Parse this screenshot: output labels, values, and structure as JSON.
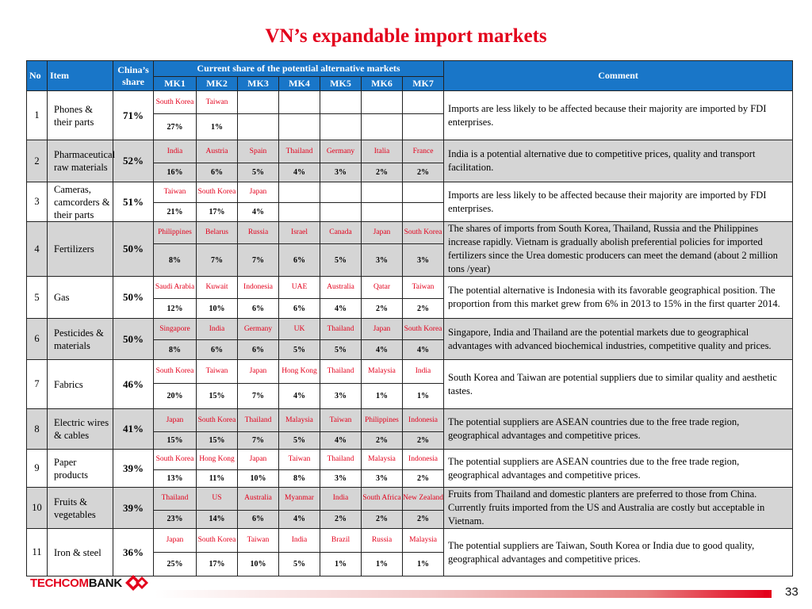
{
  "title": "VN’s expandable import markets",
  "headers": {
    "no": "No",
    "item": "Item",
    "china_share": "China’s share",
    "group": "Current share of the potential alternative markets",
    "comment": "Comment",
    "mks": [
      "MK1",
      "MK2",
      "MK3",
      "MK4",
      "MK5",
      "MK6",
      "MK7"
    ]
  },
  "rows": [
    {
      "no": "1",
      "item": "Phones & their parts",
      "share": "71%",
      "markets": [
        "South Korea",
        "Taiwan",
        "",
        "",
        "",
        "",
        ""
      ],
      "pcts": [
        "27%",
        "1%",
        "",
        "",
        "",
        "",
        ""
      ],
      "comment": "Imports are less likely to be affected because their majority are imported by FDI enterprises."
    },
    {
      "no": "2",
      "item": "Pharmaceutical raw materials",
      "share": "52%",
      "markets": [
        "India",
        "Austria",
        "Spain",
        "Thailand",
        "Germany",
        "Italia",
        "France"
      ],
      "pcts": [
        "16%",
        "6%",
        "5%",
        "4%",
        "3%",
        "2%",
        "2%"
      ],
      "comment": "India is a potential alternative due to competitive prices, quality and transport facilitation."
    },
    {
      "no": "3",
      "item": "Cameras, camcorders & their parts",
      "share": "51%",
      "markets": [
        "Taiwan",
        "South Korea",
        "Japan",
        "",
        "",
        "",
        ""
      ],
      "pcts": [
        "21%",
        "17%",
        "4%",
        "",
        "",
        "",
        ""
      ],
      "comment": "Imports are less likely to be affected because their majority are imported by FDI enterprises."
    },
    {
      "no": "4",
      "item": "Fertilizers",
      "share": "50%",
      "markets": [
        "Philippines",
        "Belarus",
        "Russia",
        "Israel",
        "Canada",
        "Japan",
        "South Korea"
      ],
      "pcts": [
        "8%",
        "7%",
        "7%",
        "6%",
        "5%",
        "3%",
        "3%"
      ],
      "comment": "The shares of imports from South Korea, Thailand, Russia and the Philippines increase rapidly. Vietnam is gradually abolish preferential policies for imported fertilizers since the Urea domestic producers can meet the demand (about 2 million tons /year)"
    },
    {
      "no": "5",
      "item": "Gas",
      "share": "50%",
      "markets": [
        "Saudi Arabia",
        "Kuwait",
        "Indonesia",
        "UAE",
        "Australia",
        "Qatar",
        "Taiwan"
      ],
      "pcts": [
        "12%",
        "10%",
        "6%",
        "6%",
        "4%",
        "2%",
        "2%"
      ],
      "comment": "The potential alternative is Indonesia with its favorable geographical position. The proportion from this market grew from 6% in 2013 to 15% in the first quarter 2014."
    },
    {
      "no": "6",
      "item": "Pesticides & materials",
      "share": "50%",
      "markets": [
        "Singapore",
        "India",
        "Germany",
        "UK",
        "Thailand",
        "Japan",
        "South Korea"
      ],
      "pcts": [
        "8%",
        "6%",
        "6%",
        "5%",
        "5%",
        "4%",
        "4%"
      ],
      "comment": "Singapore, India and Thailand are the potential markets due to geographical advantages with advanced biochemical industries, competitive quality and prices."
    },
    {
      "no": "7",
      "item": "Fabrics",
      "share": "46%",
      "markets": [
        "South Korea",
        "Taiwan",
        "Japan",
        "Hong Kong",
        "Thailand",
        "Malaysia",
        "India"
      ],
      "pcts": [
        "20%",
        "15%",
        "7%",
        "4%",
        "3%",
        "1%",
        "1%"
      ],
      "comment": "South Korea and Taiwan are potential suppliers due to similar quality and aesthetic tastes."
    },
    {
      "no": "8",
      "item": "Electric wires & cables",
      "share": "41%",
      "markets": [
        "Japan",
        "South Korea",
        "Thailand",
        "Malaysia",
        "Taiwan",
        "Philippines",
        "Indonesia"
      ],
      "pcts": [
        "15%",
        "15%",
        "7%",
        "5%",
        "4%",
        "2%",
        "2%"
      ],
      "comment": "The potential suppliers are ASEAN countries due to the free trade region, geographical advantages and competitive prices."
    },
    {
      "no": "9",
      "item": "Paper products",
      "share": "39%",
      "markets": [
        "South Korea",
        "Hong Kong",
        "Japan",
        "Taiwan",
        "Thailand",
        "Malaysia",
        "Indonesia"
      ],
      "pcts": [
        "13%",
        "11%",
        "10%",
        "8%",
        "3%",
        "3%",
        "2%"
      ],
      "comment": "The potential suppliers are ASEAN countries due to the free trade region, geographical advantages and competitive prices."
    },
    {
      "no": "10",
      "item": "Fruits & vegetables",
      "share": "39%",
      "markets": [
        "Thailand",
        "US",
        "Australia",
        "Myanmar",
        "India",
        "South Africa",
        "New Zealand"
      ],
      "pcts": [
        "23%",
        "14%",
        "6%",
        "4%",
        "2%",
        "2%",
        "2%"
      ],
      "comment": "Fruits from Thailand and domestic planters are preferred to those from China. Currently fruits imported from the US and Australia are costly but acceptable in Vietnam."
    },
    {
      "no": "11",
      "item": "Iron & steel",
      "share": "36%",
      "markets": [
        "Japan",
        "South Korea",
        "Taiwan",
        "India",
        "Brazil",
        "Russia",
        "Malaysia"
      ],
      "pcts": [
        "25%",
        "17%",
        "10%",
        "5%",
        "1%",
        "1%",
        "1%"
      ],
      "comment": "The potential suppliers are Taiwan, South Korea or India due to good quality, geographical advantages and competitive prices."
    }
  ],
  "footer": {
    "logo_part1": "TECHCOM",
    "logo_part2": "BANK",
    "page_number": "33",
    "accent_color": "#e3001b",
    "header_color": "#1976c8"
  }
}
